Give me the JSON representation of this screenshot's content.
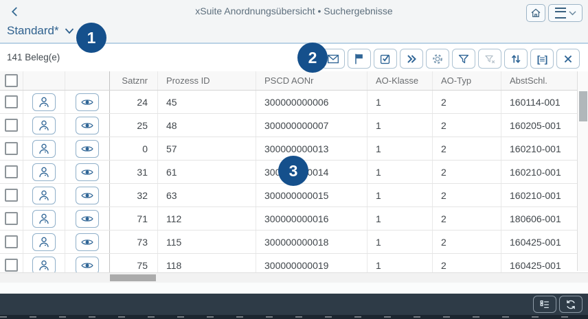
{
  "header": {
    "title": "xSuite Anordnungsübersicht • Suchergebnisse",
    "back_icon": "back-chevron-icon",
    "home_icon": "home-icon",
    "menu_icon": "hamburger-menu-icon"
  },
  "variant": {
    "label": "Standard*",
    "chevron_icon": "chevron-down-icon"
  },
  "toolbar": {
    "count": "141 Beleg(e)",
    "icons": [
      {
        "name": "email",
        "disabled": false
      },
      {
        "name": "flag",
        "disabled": false
      },
      {
        "name": "multi-select",
        "disabled": false
      },
      {
        "name": "forward",
        "disabled": false
      },
      {
        "name": "settings",
        "disabled": false
      },
      {
        "name": "filter",
        "disabled": false
      },
      {
        "name": "clear-filter",
        "disabled": true
      },
      {
        "name": "sort",
        "disabled": false
      },
      {
        "name": "display-format",
        "disabled": false,
        "glyph": "[≡]"
      },
      {
        "name": "close",
        "disabled": false
      }
    ]
  },
  "annotations": {
    "step1": "1",
    "step2": "2",
    "step3": "3"
  },
  "table": {
    "columns": [
      "Satznr",
      "Prozess ID",
      "PSCD AONr",
      "AO-Klasse",
      "AO-Typ",
      "AbstSchl."
    ],
    "row_icons": [
      "person-icon",
      "eye-icon"
    ],
    "rows": [
      [
        "24",
        "45",
        "300000000006",
        "1",
        "2",
        "160114-001"
      ],
      [
        "25",
        "48",
        "300000000007",
        "1",
        "2",
        "160205-001"
      ],
      [
        "0",
        "57",
        "300000000013",
        "1",
        "2",
        "160210-001"
      ],
      [
        "31",
        "61",
        "300000000014",
        "1",
        "2",
        "160210-001"
      ],
      [
        "32",
        "63",
        "300000000015",
        "1",
        "2",
        "160210-001"
      ],
      [
        "71",
        "112",
        "300000000016",
        "1",
        "2",
        "180606-001"
      ],
      [
        "73",
        "115",
        "300000000018",
        "1",
        "2",
        "160425-001"
      ],
      [
        "75",
        "118",
        "300000000019",
        "1",
        "2",
        "160425-001"
      ]
    ]
  },
  "footer": {
    "icons": [
      "list-settings-icon",
      "refresh-icon"
    ]
  },
  "colors": {
    "accent": "#2f6596",
    "badge": "#15508c",
    "header_bg": "#f3f5f6",
    "separator_blue": "#b9d2e5",
    "footer_bg": "#2e3b47"
  }
}
